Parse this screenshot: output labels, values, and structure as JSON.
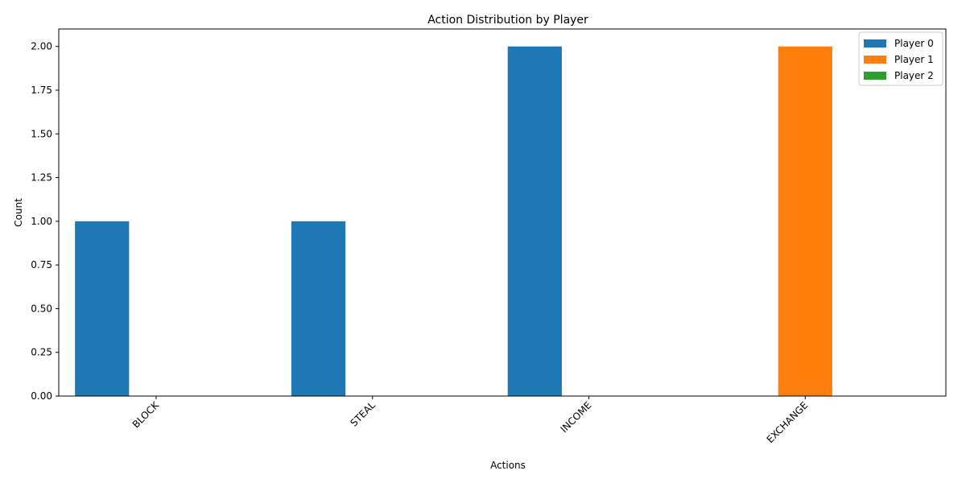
{
  "chart_data": {
    "type": "bar",
    "title": "Action Distribution by Player",
    "xlabel": "Actions",
    "ylabel": "Count",
    "categories": [
      "BLOCK",
      "STEAL",
      "INCOME",
      "EXCHANGE"
    ],
    "series": [
      {
        "name": "Player 0",
        "color": "#1f77b4",
        "values": [
          1,
          1,
          2,
          0
        ]
      },
      {
        "name": "Player 1",
        "color": "#ff7f0e",
        "values": [
          0,
          0,
          0,
          2
        ]
      },
      {
        "name": "Player 2",
        "color": "#2ca02c",
        "values": [
          0,
          0,
          0,
          0
        ]
      }
    ],
    "ylim": [
      0,
      2.1
    ],
    "yticks": [
      "0.00",
      "0.25",
      "0.50",
      "0.75",
      "1.00",
      "1.25",
      "1.50",
      "1.75",
      "2.00"
    ],
    "xtick_rotation_deg": 45,
    "grid": false,
    "legend_position": "top-right"
  }
}
